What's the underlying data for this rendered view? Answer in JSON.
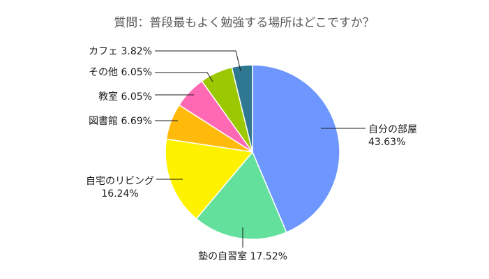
{
  "chart_data": {
    "type": "pie",
    "title": "質問：普段最もよく勉強する場所はどこですか？",
    "unit": "%",
    "slices": [
      {
        "label": "自分の部屋",
        "value": 43.63,
        "display": "43.63%",
        "color": "#6d96ff"
      },
      {
        "label": "塾の自習室",
        "value": 17.52,
        "display": "17.52%",
        "color": "#63e09c"
      },
      {
        "label": "自宅のリビング",
        "value": 16.24,
        "display": "16.24%",
        "color": "#fff200"
      },
      {
        "label": "図書館",
        "value": 6.69,
        "display": "6.69%",
        "color": "#ffba0c"
      },
      {
        "label": "教室",
        "value": 6.05,
        "display": "6.05%",
        "color": "#ff69b4"
      },
      {
        "label": "その他",
        "value": 6.05,
        "display": "6.05%",
        "color": "#9bc800"
      },
      {
        "label": "カフェ",
        "value": 3.82,
        "display": "3.82%",
        "color": "#2f7891"
      }
    ]
  }
}
